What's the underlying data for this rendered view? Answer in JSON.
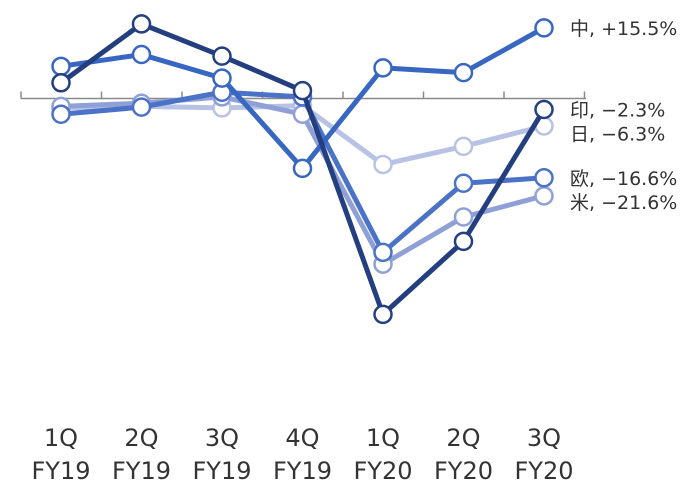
{
  "chart_data": {
    "type": "line",
    "title": "",
    "xlabel": "",
    "ylabel": "",
    "categories": [
      [
        "1Q",
        "FY19"
      ],
      [
        "2Q",
        "FY19"
      ],
      [
        "3Q",
        "FY19"
      ],
      [
        "4Q",
        "FY19"
      ],
      [
        "1Q",
        "FY20"
      ],
      [
        "2Q",
        "FY20"
      ],
      [
        "3Q",
        "FY20"
      ]
    ],
    "ylim": [
      -30,
      10
    ],
    "grid": false,
    "series": [
      {
        "name": "日",
        "end_label": "日, −6.3%",
        "color": "#b8c2e4",
        "values": [
          -1.2,
          -1.0,
          -1.2,
          -0.9,
          -8.4,
          -6.1,
          -3.5
        ]
      },
      {
        "name": "米",
        "end_label": "米, −21.6%",
        "color": "#8fa0d6",
        "values": [
          -1.0,
          -0.6,
          0.2,
          -2.0,
          -21.1,
          -15.1,
          -12.4
        ]
      },
      {
        "name": "欧",
        "end_label": "欧, −16.6%",
        "color": "#4a72c7",
        "values": [
          -2.0,
          -1.1,
          0.8,
          0.2,
          -19.6,
          -10.8,
          -10.1
        ]
      },
      {
        "name": "中",
        "end_label": "中, +15.5%",
        "color": "#3867c2",
        "values": [
          4.1,
          5.6,
          2.6,
          -8.9,
          3.9,
          3.3,
          9.0
        ]
      },
      {
        "name": "印",
        "end_label": "印, −2.3%",
        "color": "#243f80",
        "values": [
          2.0,
          9.5,
          5.4,
          1.0,
          -27.5,
          -18.2,
          -1.4
        ]
      }
    ]
  }
}
